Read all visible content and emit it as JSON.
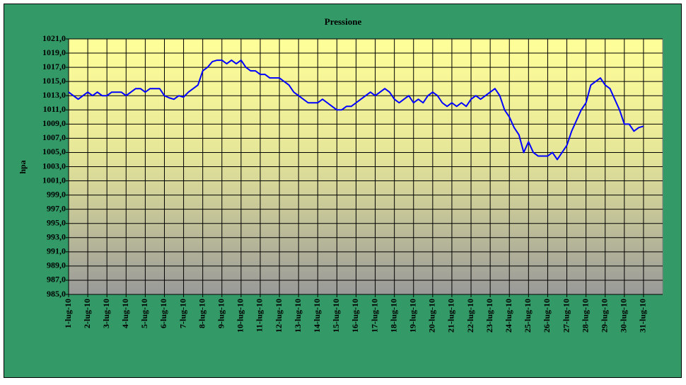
{
  "chart_data": {
    "type": "line",
    "title": "Pressione",
    "y_label": "hpa",
    "categories": [
      "1-lug-10",
      null,
      null,
      null,
      "2-lug-10",
      null,
      null,
      null,
      "3-lug-10",
      null,
      null,
      null,
      "4-lug-10",
      null,
      null,
      null,
      "5-lug-10",
      null,
      null,
      null,
      "6-lug-10",
      null,
      null,
      null,
      "7-lug-10",
      null,
      null,
      null,
      "8-lug-10",
      null,
      null,
      null,
      "9-lug-10",
      null,
      null,
      null,
      "10-lug-10",
      null,
      null,
      null,
      "11-lug-10",
      null,
      null,
      null,
      "12-lug-10",
      null,
      null,
      null,
      "13-lug-10",
      null,
      null,
      null,
      "14-lug-10",
      null,
      null,
      null,
      "15-lug-10",
      null,
      null,
      null,
      "16-lug-10",
      null,
      null,
      null,
      "17-lug-10",
      null,
      null,
      null,
      "18-lug-10",
      null,
      null,
      null,
      "19-lug-10",
      null,
      null,
      null,
      "20-lug-10",
      null,
      null,
      null,
      "21-lug-10",
      null,
      null,
      null,
      "22-lug-10",
      null,
      null,
      null,
      "23-lug-10",
      null,
      null,
      null,
      "24-lug-10",
      null,
      null,
      null,
      "25-lug-10",
      null,
      null,
      null,
      "26-lug-10",
      null,
      null,
      null,
      "27-lug-10",
      null,
      null,
      null,
      "28-lug-10",
      null,
      null,
      null,
      "29-lug-10",
      null,
      null,
      null,
      "30-lug-10",
      null,
      null,
      null,
      "31-lug-10",
      null,
      null,
      null
    ],
    "series": [
      {
        "color": "#0000ff",
        "values": [
          1013.5,
          1013,
          1012.5,
          1013,
          1013.5,
          1013,
          1013.5,
          1013,
          1013,
          1013.5,
          1013.5,
          1013.5,
          1013,
          1013.5,
          1014,
          1014,
          1013.5,
          1014,
          1014,
          1014,
          1013,
          1012.7,
          1012.5,
          1013,
          1012.8,
          1013.5,
          1014,
          1014.5,
          1016.5,
          1017,
          1017.8,
          1018,
          1018,
          1017.5,
          1018,
          1017.5,
          1018,
          1017,
          1016.5,
          1016.5,
          1016,
          1016,
          1015.5,
          1015.5,
          1015.5,
          1015,
          1014.5,
          1013.5,
          1013,
          1012.5,
          1012,
          1012,
          1012,
          1012.5,
          1012,
          1011.5,
          1011,
          1011,
          1011.5,
          1011.5,
          1012,
          1012.5,
          1013,
          1013.5,
          1013,
          1013.5,
          1014,
          1013.5,
          1012.5,
          1012,
          1012.5,
          1013,
          1012,
          1012.5,
          1012,
          1013,
          1013.5,
          1013,
          1012,
          1011.5,
          1012,
          1011.5,
          1012,
          1011.5,
          1012.5,
          1013,
          1012.5,
          1013,
          1013.5,
          1014,
          1013,
          1011,
          1010,
          1008.5,
          1007.5,
          1005,
          1006.5,
          1005,
          1004.5,
          1004.5,
          1004.5,
          1005,
          1004,
          1005,
          1006,
          1008,
          1009.5,
          1011,
          1012,
          1014.5,
          1015,
          1015.5,
          1014.5,
          1014,
          1012.5,
          1011,
          1009,
          1009,
          1008,
          1008.5,
          1008.7,
          null,
          null,
          null
        ]
      }
    ],
    "ylim": [
      985,
      1021
    ],
    "yticks": [
      {
        "value": 985,
        "label": "985,0"
      },
      {
        "value": 987,
        "label": "987,0"
      },
      {
        "value": 989,
        "label": "989,0"
      },
      {
        "value": 991,
        "label": "991,0"
      },
      {
        "value": 993,
        "label": "993,0"
      },
      {
        "value": 995,
        "label": "995,0"
      },
      {
        "value": 997,
        "label": "997,0"
      },
      {
        "value": 999,
        "label": "999,0"
      },
      {
        "value": 1001,
        "label": "1001,0"
      },
      {
        "value": 1003,
        "label": "1003,0"
      },
      {
        "value": 1005,
        "label": "1005,0"
      },
      {
        "value": 1007,
        "label": "1007,0"
      },
      {
        "value": 1009,
        "label": "1009,0"
      },
      {
        "value": 1011,
        "label": "1011,0"
      },
      {
        "value": 1013,
        "label": "1013,0"
      },
      {
        "value": 1015,
        "label": "1015,0"
      },
      {
        "value": 1017,
        "label": "1017,0"
      },
      {
        "value": 1019,
        "label": "1019,0"
      },
      {
        "value": 1021,
        "label": "1021,0"
      }
    ],
    "grid": true
  }
}
